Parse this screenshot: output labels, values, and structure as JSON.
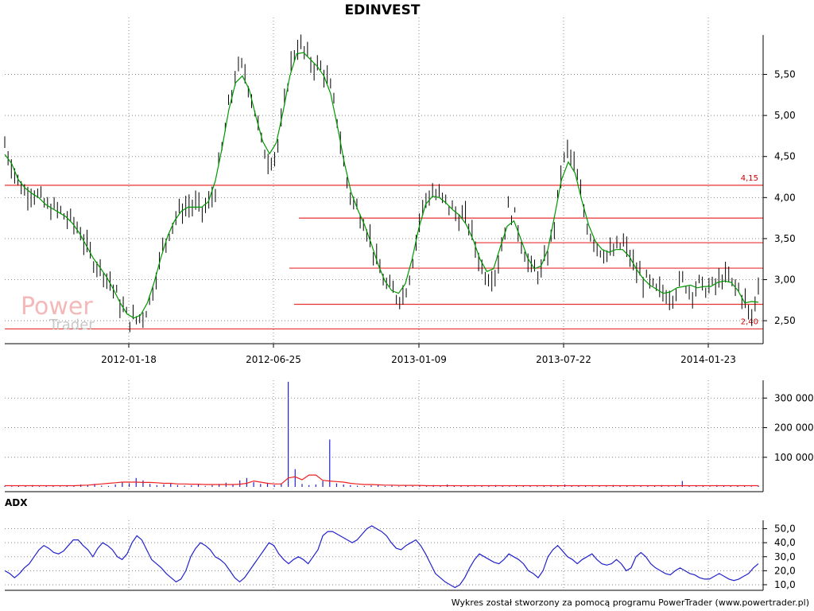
{
  "chart_data": [
    {
      "type": "line",
      "title": "EDINVEST",
      "x_tick_labels": [
        "2012-01-18",
        "2012-06-25",
        "2013-01-09",
        "2013-07-22",
        "2014-01-23"
      ],
      "y_tick_labels": [
        "2,50",
        "3,00",
        "3,50",
        "4,00",
        "4,50",
        "5,00",
        "5,50"
      ],
      "y_ticks": [
        2.5,
        3.0,
        3.5,
        4.0,
        4.5,
        5.0,
        5.5
      ],
      "ylim": [
        2.22,
        5.98
      ],
      "grid": true,
      "series": [
        {
          "values": [
            4.65,
            4.4,
            4.2,
            4.05,
            4.1,
            4.0,
            3.9,
            3.85,
            3.85,
            3.75,
            3.7,
            3.6,
            3.4,
            3.25,
            3.15,
            3.05,
            2.9,
            2.7,
            2.55,
            2.5,
            2.55,
            2.65,
            2.95,
            3.3,
            3.55,
            3.75,
            3.85,
            3.9,
            3.9,
            3.85,
            3.9,
            4.1,
            4.6,
            5.1,
            5.5,
            5.6,
            5.35,
            5.0,
            4.6,
            4.45,
            4.55,
            5.0,
            5.6,
            5.85,
            5.8,
            5.65,
            5.6,
            5.55,
            5.3,
            4.95,
            4.35,
            4.0,
            3.85,
            3.7,
            3.45,
            3.15,
            2.95,
            2.85,
            2.8,
            2.85,
            3.2,
            3.7,
            4.0,
            4.05,
            4.0,
            3.95,
            3.85,
            3.75,
            3.75,
            3.5,
            3.2,
            3.05,
            3.05,
            3.3,
            3.85,
            3.8,
            3.5,
            3.2,
            3.1,
            3.1,
            3.3,
            3.7,
            4.35,
            4.6,
            4.35,
            3.95,
            3.6,
            3.45,
            3.35,
            3.3,
            3.35,
            3.45,
            3.3,
            3.1,
            3.0,
            2.95,
            2.85,
            2.85,
            2.8,
            2.9,
            3.0,
            2.85,
            2.95,
            2.9,
            2.9,
            2.95,
            3.05,
            2.95,
            2.9,
            2.75,
            2.5,
            2.95
          ]
        }
      ],
      "levels": [
        {
          "value": 4.15,
          "label": "4,15"
        },
        {
          "value": 3.75
        },
        {
          "value": 3.45
        },
        {
          "value": 3.14
        },
        {
          "value": 2.7
        },
        {
          "value": 2.4,
          "label": "2,40"
        }
      ]
    },
    {
      "type": "bar",
      "y_tick_labels": [
        "100 000",
        "200 000",
        "300 000"
      ],
      "y_ticks": [
        100000,
        200000,
        300000
      ],
      "ylim": [
        0,
        360000
      ],
      "series": [
        {
          "values": [
            3000,
            2000,
            4000,
            3000,
            6000,
            2000,
            3000,
            5000,
            2000,
            4000,
            3000,
            8000,
            6000,
            10000,
            4000,
            3000,
            8000,
            16000,
            12000,
            30000,
            22000,
            10000,
            6000,
            8000,
            12000,
            6000,
            4000,
            5000,
            8000,
            3000,
            6000,
            10000,
            14000,
            8000,
            22000,
            30000,
            16000,
            10000,
            14000,
            6000,
            12000,
            355000,
            60000,
            10000,
            6000,
            8000,
            20000,
            160000,
            12000,
            8000,
            6000,
            4000,
            3000,
            5000,
            6000,
            3000,
            4000,
            2000,
            5000,
            3000,
            4000,
            2000,
            6000,
            3000,
            8000,
            4000,
            3000,
            5000,
            2000,
            3000,
            4000,
            6000,
            3000,
            2000,
            5000,
            4000,
            3000,
            2000,
            4000,
            6000,
            3000,
            8000,
            5000,
            3000,
            4000,
            2000,
            3000,
            2000,
            6000,
            4000,
            3000,
            2000,
            5000,
            3000,
            4000,
            6000,
            2000,
            3000,
            20000,
            5000,
            3000,
            4000,
            2000,
            6000,
            3000,
            4000,
            5000,
            3000,
            2000,
            4000
          ]
        },
        {
          "values": [
            4000,
            4000,
            4000,
            4000,
            4000,
            4000,
            4000,
            4000,
            4000,
            4000,
            4000,
            5000,
            6000,
            8000,
            10000,
            12000,
            14000,
            16000,
            16000,
            16000,
            15000,
            15000,
            14000,
            12000,
            12000,
            10000,
            10000,
            9000,
            9000,
            8000,
            8000,
            8000,
            8000,
            8000,
            9000,
            12000,
            20000,
            16000,
            12000,
            10000,
            10000,
            30000,
            34000,
            24000,
            40000,
            40000,
            22000,
            20000,
            18000,
            16000,
            12000,
            10000,
            8000,
            8000,
            7000,
            6000,
            6000,
            5000,
            5000,
            5000,
            5000,
            4000,
            4000,
            4000,
            4000,
            4000,
            4000,
            4000,
            4000,
            4000,
            4000,
            4000,
            4000,
            4000,
            4000,
            4000,
            4000,
            4000,
            4000,
            4000,
            4000,
            4000,
            4000,
            4000,
            4000,
            4000,
            4000,
            4000,
            4000,
            4000,
            4000,
            4000,
            4000,
            4000,
            4000,
            4000,
            4000,
            4000,
            4000,
            4000,
            4000,
            4000,
            4000,
            4000,
            4000,
            4000,
            4000,
            4000,
            4000,
            4000
          ]
        }
      ]
    },
    {
      "type": "line",
      "title": "ADX",
      "y_tick_labels": [
        "10,0",
        "20,0",
        "30,0",
        "40,0",
        "50,0"
      ],
      "y_ticks": [
        10,
        20,
        30,
        40,
        50
      ],
      "ylim": [
        6,
        56
      ],
      "series": [
        {
          "values": [
            20,
            18,
            15,
            18,
            22,
            25,
            30,
            35,
            38,
            36,
            33,
            32,
            34,
            38,
            42,
            42,
            38,
            35,
            30,
            36,
            40,
            38,
            35,
            30,
            28,
            32,
            40,
            45,
            42,
            35,
            28,
            25,
            22,
            18,
            15,
            12,
            14,
            20,
            30,
            36,
            40,
            38,
            35,
            30,
            28,
            25,
            20,
            15,
            12,
            15,
            20,
            25,
            30,
            35,
            40,
            38,
            32,
            28,
            25,
            28,
            30,
            28,
            25,
            30,
            35,
            45,
            48,
            48,
            46,
            44,
            42,
            40,
            42,
            46,
            50,
            52,
            50,
            48,
            45,
            40,
            36,
            35,
            38,
            40,
            42,
            38,
            32,
            25,
            18,
            15,
            12,
            10,
            8,
            10,
            15,
            22,
            28,
            32,
            30,
            28,
            26,
            25,
            28,
            32,
            30,
            28,
            25,
            20,
            18,
            15,
            20,
            30,
            35,
            38,
            34,
            30,
            28,
            25,
            28,
            30,
            32,
            28,
            25,
            24,
            25,
            28,
            25,
            20,
            22,
            30,
            33,
            30,
            25,
            22,
            20,
            18,
            17,
            20,
            22,
            20,
            18,
            17,
            15,
            14,
            14,
            16,
            18,
            16,
            14,
            13,
            14,
            16,
            18,
            22,
            25
          ]
        }
      ]
    }
  ],
  "watermark": {
    "line1": "Power",
    "line2": "Trader"
  },
  "footer": "Wykres został stworzony za pomocą programu PowerTrader (www.powertrader.pl)",
  "colors": {
    "price": "#000000",
    "ma": "#009900",
    "levels": "#e83030",
    "volume": "#2222cc",
    "volume_ma": "#ee2222",
    "adx": "#2222cc",
    "grid": "#888888"
  }
}
